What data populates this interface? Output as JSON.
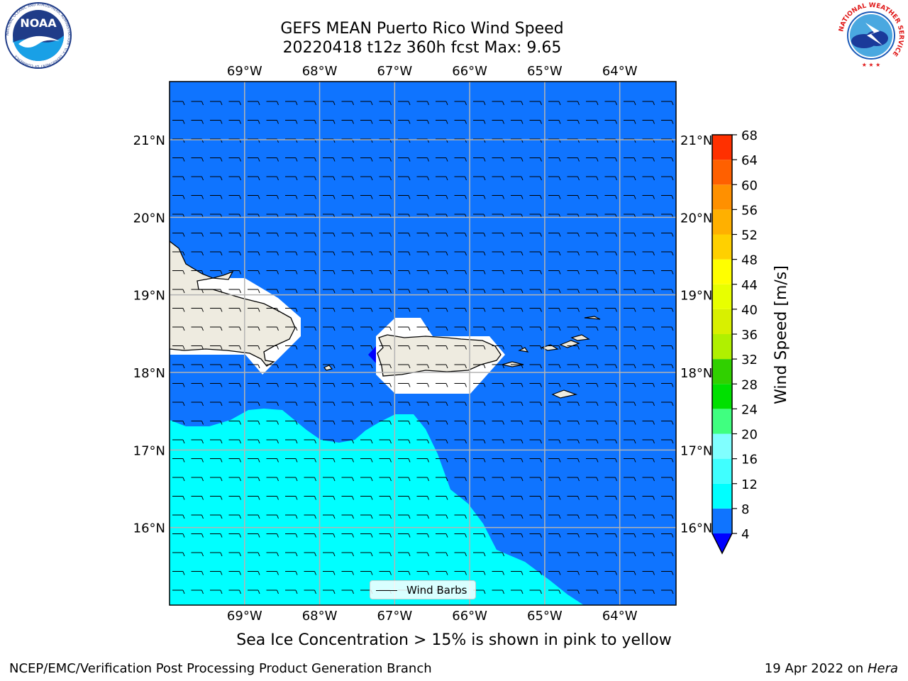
{
  "title": {
    "line1": "GEFS MEAN Puerto Rico Wind Speed",
    "line2": "20220418 t12z 360h fcst   Max: 9.65"
  },
  "logos": {
    "noaa_text": "NOAA",
    "noaa_ring": "NATIONAL OCEANIC AND ATMOSPHERIC ADMINISTRATION · U.S. DEPARTMENT OF COMMERCE",
    "nws_ring": "NATIONAL WEATHER SERVICE"
  },
  "map": {
    "lon_labels": [
      "69°W",
      "68°W",
      "67°W",
      "66°W",
      "65°W",
      "64°W"
    ],
    "lon_values": [
      -69,
      -68,
      -67,
      -66,
      -65,
      -64
    ],
    "lat_labels": [
      "21°N",
      "20°N",
      "19°N",
      "18°N",
      "17°N",
      "16°N"
    ],
    "lat_values": [
      21,
      20,
      19,
      18,
      17,
      16
    ],
    "lon_range": [
      -70.0,
      -63.25
    ],
    "lat_range": [
      15.0,
      21.75
    ],
    "ocean_color": "#0f74ff",
    "land_color": "#eeebe0",
    "cyan_color": "#00ffff",
    "grid_color": "#b4b4b4",
    "legend_label": "Wind Barbs",
    "wind_barb_wind": "easterly"
  },
  "colorbar": {
    "label": "Wind Speed [m/s]",
    "ticks": [
      "68",
      "64",
      "60",
      "56",
      "52",
      "48",
      "44",
      "40",
      "36",
      "32",
      "28",
      "24",
      "20",
      "16",
      "12",
      "8",
      "4"
    ],
    "levels": [
      4,
      8,
      12,
      16,
      20,
      24,
      28,
      32,
      36,
      40,
      44,
      48,
      52,
      56,
      60,
      64,
      68
    ],
    "colors": [
      "#0f74ff",
      "#00ffff",
      "#40ffff",
      "#80ffff",
      "#40ff80",
      "#00e000",
      "#30d000",
      "#b0f000",
      "#d8f000",
      "#e8ff00",
      "#ffff00",
      "#ffd000",
      "#ffb000",
      "#ff9000",
      "#ff6000",
      "#ff3000",
      "#ff0000"
    ],
    "extend_color": "#0000ff"
  },
  "subtitle": "Sea Ice Concentration > 15% is shown in pink to yellow",
  "footer": {
    "left": "NCEP/EMC/Verification Post Processing Product Generation Branch",
    "right_prefix": "19 Apr 2022 on ",
    "right_host": "Hera"
  }
}
